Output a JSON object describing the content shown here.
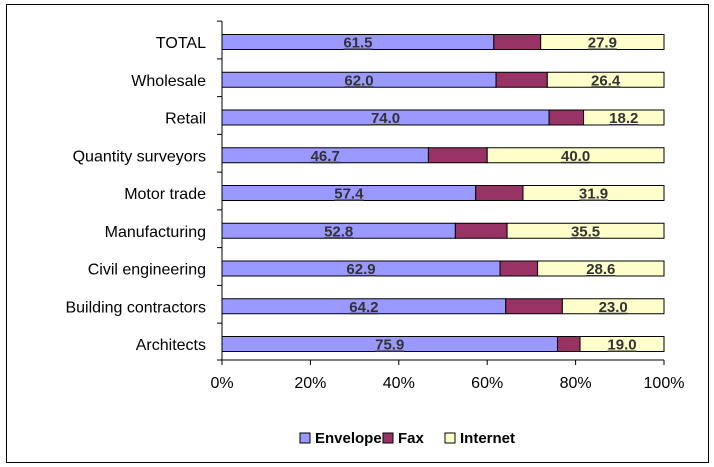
{
  "chart_data": {
    "type": "bar",
    "orientation": "horizontal",
    "stacked": "percent",
    "categories": [
      "TOTAL",
      "Wholesale",
      "Retail",
      "Quantity surveyors",
      "Motor trade",
      "Manufacturing",
      "Civil engineering",
      "Building contractors",
      "Architects"
    ],
    "series": [
      {
        "name": "Envelope",
        "color": "#9999ff",
        "values": [
          61.5,
          62.0,
          74.0,
          46.7,
          57.4,
          52.8,
          62.9,
          64.2,
          75.9
        ]
      },
      {
        "name": "Fax",
        "color": "#993366",
        "values": [
          10.6,
          11.6,
          7.8,
          13.3,
          10.7,
          11.7,
          8.5,
          12.8,
          5.1
        ]
      },
      {
        "name": "Internet",
        "color": "#ffffcc",
        "values": [
          27.9,
          26.4,
          18.2,
          40.0,
          31.9,
          35.5,
          28.6,
          23.0,
          19.0
        ]
      }
    ],
    "data_labels": {
      "Envelope": [
        "61.5",
        "62.0",
        "74.0",
        "46.7",
        "57.4",
        "52.8",
        "62.9",
        "64.2",
        "75.9"
      ],
      "Internet": [
        "27.9",
        "26.4",
        "18.2",
        "40.0",
        "31.9",
        "35.5",
        "28.6",
        "23.0",
        "19.0"
      ]
    },
    "x_ticks": [
      "0%",
      "20%",
      "40%",
      "60%",
      "80%",
      "100%"
    ],
    "xlim": [
      0,
      100
    ],
    "grid": false,
    "legend_position": "bottom"
  }
}
